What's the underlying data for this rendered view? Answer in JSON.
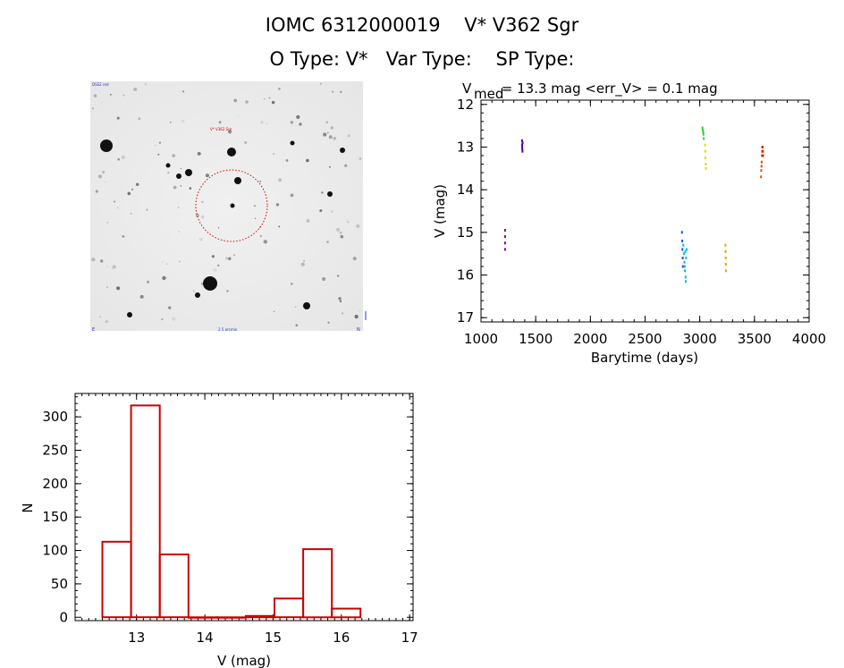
{
  "header": {
    "line1": "IOMC 6312000019    V* V362 Sgr",
    "line2": "O Type: V*   Var Type:    SP Type:"
  },
  "sky_image": {
    "top_left_label": "DSS2 red",
    "target_label": "V* V362 Sgr",
    "bottom_center_label": "2.5 arcmin",
    "bottom_left_label": "E",
    "bottom_right_label": "N"
  },
  "chart_data": [
    {
      "type": "scatter",
      "title_main": "V",
      "title_sub": "med",
      "title_rest": " = 13.3 mag <err_V> = 0.1 mag",
      "xlabel": "Barytime (days)",
      "ylabel": "V (mag)",
      "xlim": [
        1000,
        4000
      ],
      "ylim": [
        17.1,
        11.9
      ],
      "y_inverted": true,
      "xticks": [
        1000,
        1500,
        2000,
        2500,
        3000,
        3500,
        4000
      ],
      "yticks": [
        12,
        13,
        14,
        15,
        16,
        17
      ],
      "series": [
        {
          "color": "#7a0099",
          "x": [
            1220,
            1220,
            1220,
            1220
          ],
          "y": [
            14.95,
            15.1,
            15.25,
            15.4
          ]
        },
        {
          "color": "#5500aa",
          "x": [
            1375,
            1376,
            1377,
            1378,
            1379,
            1380
          ],
          "y": [
            12.85,
            12.95,
            13.0,
            13.05,
            13.1,
            12.9
          ]
        },
        {
          "color": "#1e50dc",
          "x": [
            2838,
            2840,
            2842,
            2844,
            2846
          ],
          "y": [
            15.0,
            15.2,
            15.4,
            15.6,
            15.8
          ]
        },
        {
          "color": "#00c0d0",
          "x": [
            2850,
            2855,
            2860,
            2865,
            2870,
            2875,
            2880,
            2862,
            2868,
            2872
          ],
          "y": [
            15.3,
            15.5,
            15.7,
            15.9,
            16.05,
            15.6,
            15.4,
            15.8,
            15.45,
            16.15
          ]
        },
        {
          "color": "#33cc33",
          "x": [
            3025,
            3028,
            3031,
            3034,
            3037
          ],
          "y": [
            12.55,
            12.6,
            12.65,
            12.7,
            12.8
          ]
        },
        {
          "color": "#dddd00",
          "x": [
            3048,
            3050,
            3052,
            3054,
            3056
          ],
          "y": [
            12.95,
            13.1,
            13.25,
            13.4,
            13.5
          ]
        },
        {
          "color": "#e8a000",
          "x": [
            3235,
            3236,
            3237,
            3238,
            3239
          ],
          "y": [
            15.3,
            15.45,
            15.6,
            15.75,
            15.9
          ]
        },
        {
          "color": "#e05000",
          "x": [
            3560,
            3562,
            3564,
            3566,
            3568,
            3570,
            3572
          ],
          "y": [
            13.7,
            13.55,
            13.45,
            13.35,
            13.2,
            13.1,
            13.0
          ]
        },
        {
          "color": "#cc2200",
          "x": [
            3575,
            3577,
            3579
          ],
          "y": [
            13.0,
            13.1,
            13.2
          ]
        }
      ]
    },
    {
      "type": "bar",
      "title": "",
      "xlabel": "V (mag)",
      "ylabel": "N",
      "xlim": [
        12.1,
        17.05
      ],
      "ylim": [
        -5,
        335
      ],
      "xticks": [
        13,
        14,
        15,
        16,
        17
      ],
      "yticks": [
        0,
        50,
        100,
        150,
        200,
        250,
        300
      ],
      "bar_color": "#cc0000",
      "bins": [
        {
          "x0": 12.5,
          "x1": 12.92,
          "value": 113
        },
        {
          "x0": 12.92,
          "x1": 13.34,
          "value": 317
        },
        {
          "x0": 13.34,
          "x1": 13.76,
          "value": 94
        },
        {
          "x0": 13.76,
          "x1": 14.18,
          "value": 0
        },
        {
          "x0": 14.18,
          "x1": 14.6,
          "value": 0
        },
        {
          "x0": 14.6,
          "x1": 15.02,
          "value": 2
        },
        {
          "x0": 15.02,
          "x1": 15.44,
          "value": 28
        },
        {
          "x0": 15.44,
          "x1": 15.86,
          "value": 102
        },
        {
          "x0": 15.86,
          "x1": 16.28,
          "value": 13
        }
      ]
    }
  ]
}
